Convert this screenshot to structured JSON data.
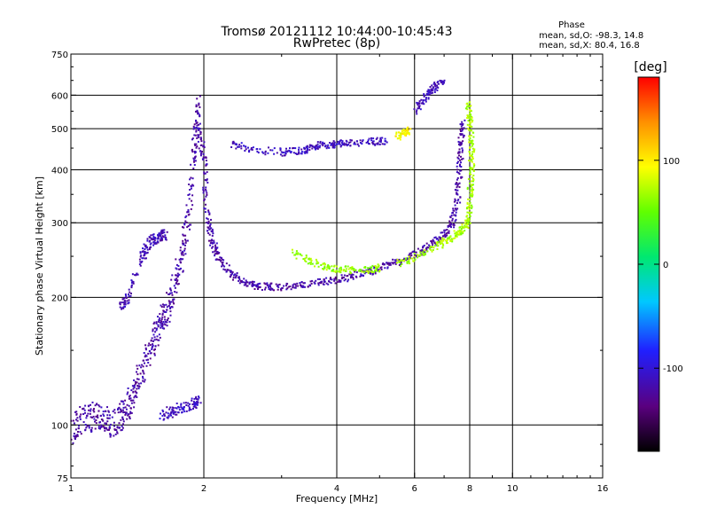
{
  "chart_data": {
    "type": "scatter",
    "title": "Tromsø 20121112 10:44:00-10:45:43",
    "subtitle": "RwPretec (8p)",
    "xlabel": "Frequency [MHz]",
    "ylabel": "Stationary phase Virtual Height [km]",
    "x_scale": "log",
    "y_scale": "log",
    "xlim": [
      1,
      16
    ],
    "ylim": [
      75,
      750
    ],
    "xticks": [
      1,
      2,
      4,
      6,
      8,
      10,
      16
    ],
    "xtick_labels": [
      "1",
      "2",
      "4",
      "6",
      "8",
      "10",
      "16"
    ],
    "yticks": [
      75,
      100,
      200,
      300,
      400,
      500,
      600,
      750
    ],
    "ytick_labels": [
      "75",
      "100",
      "200",
      "300",
      "400",
      "500",
      "600",
      "750"
    ],
    "grid_x": [
      2,
      4,
      6,
      8,
      10
    ],
    "grid_y": [
      100,
      200,
      300,
      400,
      500,
      600
    ],
    "stats_title": "Phase",
    "stats": [
      "mean, sd,O: -98.3, 14.8",
      "mean, sd,X: 80.4, 16.8"
    ],
    "colorbar": {
      "label": "[deg]",
      "range": [
        -180,
        180
      ],
      "tick_values": [
        -100,
        0,
        100
      ],
      "tick_labels": [
        "-100",
        "0",
        "100"
      ]
    },
    "series": [
      {
        "traces": [
          {
            "phase": -120,
            "points": [
              [
                1.0,
                97
              ],
              [
                1.05,
                102
              ],
              [
                1.1,
                104
              ],
              [
                1.15,
                106
              ],
              [
                1.2,
                103
              ],
              [
                1.25,
                100
              ],
              [
                1.3,
                104
              ],
              [
                1.35,
                112
              ],
              [
                1.4,
                122
              ],
              [
                1.45,
                135
              ],
              [
                1.5,
                148
              ],
              [
                1.55,
                160
              ],
              [
                1.6,
                172
              ],
              [
                1.65,
                185
              ],
              [
                1.7,
                205
              ],
              [
                1.75,
                230
              ],
              [
                1.8,
                265
              ],
              [
                1.85,
                320
              ],
              [
                1.9,
                420
              ],
              [
                1.93,
                520
              ],
              [
                1.95,
                560
              ]
            ],
            "spread": 0.08
          },
          {
            "phase": -110,
            "points": [
              [
                1.6,
                105
              ],
              [
                1.7,
                108
              ],
              [
                1.8,
                110
              ],
              [
                1.9,
                112
              ],
              [
                1.95,
                115
              ]
            ],
            "spread": 0.03
          },
          {
            "phase": -115,
            "points": [
              [
                1.3,
                190
              ],
              [
                1.35,
                200
              ],
              [
                1.45,
                250
              ],
              [
                1.5,
                265
              ],
              [
                1.55,
                275
              ],
              [
                1.6,
                280
              ],
              [
                1.65,
                280
              ]
            ],
            "spread": 0.03
          },
          {
            "phase": -120,
            "points": [
              [
                1.95,
                500
              ],
              [
                2.0,
                420
              ],
              [
                2.03,
                330
              ],
              [
                2.08,
                275
              ],
              [
                2.15,
                250
              ],
              [
                2.3,
                228
              ],
              [
                2.5,
                215
              ],
              [
                2.7,
                212
              ],
              [
                3.0,
                212
              ],
              [
                3.4,
                215
              ],
              [
                3.8,
                218
              ],
              [
                4.2,
                222
              ],
              [
                4.6,
                228
              ],
              [
                5.0,
                234
              ],
              [
                5.5,
                242
              ],
              [
                6.0,
                252
              ],
              [
                6.5,
                265
              ],
              [
                7.0,
                280
              ],
              [
                7.3,
                300
              ],
              [
                7.5,
                340
              ],
              [
                7.6,
                400
              ],
              [
                7.65,
                460
              ],
              [
                7.7,
                520
              ]
            ],
            "spread": 0.02
          },
          {
            "phase": -110,
            "points": [
              [
                2.3,
                460
              ],
              [
                2.6,
                445
              ],
              [
                3.0,
                440
              ],
              [
                3.3,
                442
              ],
              [
                3.5,
                450
              ],
              [
                3.7,
                458
              ],
              [
                4.0,
                460
              ],
              [
                4.3,
                462
              ],
              [
                4.8,
                465
              ],
              [
                5.2,
                470
              ]
            ],
            "spread": 0.02
          },
          {
            "phase": -110,
            "points": [
              [
                6.0,
                550
              ],
              [
                6.3,
                590
              ],
              [
                6.6,
                620
              ],
              [
                7.0,
                650
              ]
            ],
            "spread": 0.02
          },
          {
            "phase": 65,
            "points": [
              [
                3.2,
                255
              ],
              [
                3.5,
                242
              ],
              [
                3.8,
                235
              ],
              [
                4.2,
                232
              ],
              [
                4.6,
                232
              ],
              [
                5.0,
                235
              ]
            ],
            "spread": 0.02
          },
          {
            "phase": 70,
            "points": [
              [
                5.5,
                240
              ],
              [
                6.0,
                248
              ],
              [
                6.5,
                258
              ],
              [
                7.0,
                270
              ],
              [
                7.4,
                280
              ],
              [
                7.7,
                290
              ],
              [
                7.9,
                300
              ],
              [
                8.0,
                330
              ],
              [
                8.05,
                380
              ],
              [
                8.1,
                430
              ],
              [
                8.05,
                480
              ],
              [
                8.0,
                530
              ],
              [
                7.95,
                580
              ]
            ],
            "spread": 0.02
          },
          {
            "phase": 95,
            "points": [
              [
                5.5,
                480
              ],
              [
                5.7,
                490
              ],
              [
                5.8,
                495
              ]
            ],
            "spread": 0.02
          }
        ]
      }
    ]
  }
}
